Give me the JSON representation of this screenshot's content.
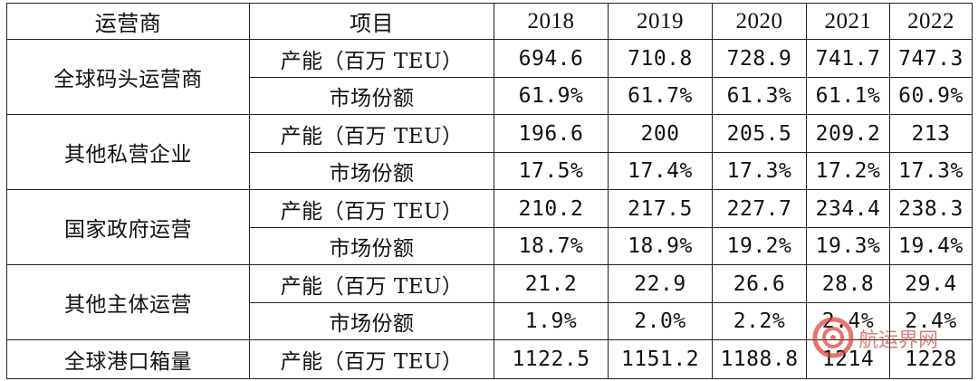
{
  "table": {
    "headers": {
      "operator": "运营商",
      "item": "项目",
      "years": [
        "2018",
        "2019",
        "2020",
        "2021",
        "2022"
      ]
    },
    "groups": [
      {
        "name": "全球码头运营商",
        "rows": [
          {
            "item": "产能（百万 TEU）",
            "values": [
              "694.6",
              "710.8",
              "728.9",
              "741.7",
              "747.3"
            ]
          },
          {
            "item": "市场份额",
            "values": [
              "61.9%",
              "61.7%",
              "61.3%",
              "61.1%",
              "60.9%"
            ]
          }
        ]
      },
      {
        "name": "其他私营企业",
        "rows": [
          {
            "item": "产能（百万 TEU）",
            "values": [
              "196.6",
              "200",
              "205.5",
              "209.2",
              "213"
            ]
          },
          {
            "item": "市场份额",
            "values": [
              "17.5%",
              "17.4%",
              "17.3%",
              "17.2%",
              "17.3%"
            ]
          }
        ]
      },
      {
        "name": "国家政府运营",
        "rows": [
          {
            "item": "产能（百万 TEU）",
            "values": [
              "210.2",
              "217.5",
              "227.7",
              "234.4",
              "238.3"
            ]
          },
          {
            "item": "市场份额",
            "values": [
              "18.7%",
              "18.9%",
              "19.2%",
              "19.3%",
              "19.4%"
            ]
          }
        ]
      },
      {
        "name": "其他主体运营",
        "rows": [
          {
            "item": "产能（百万 TEU）",
            "values": [
              "21.2",
              "22.9",
              "26.6",
              "28.8",
              "29.4"
            ]
          },
          {
            "item": "市场份额",
            "values": [
              "1.9%",
              "2.0%",
              "2.2%",
              "2.4%",
              "2.4%"
            ]
          }
        ]
      }
    ],
    "total": {
      "name": "全球港口箱量",
      "item": "产能（百万 TEU）",
      "values": [
        "1122.5",
        "1151.2",
        "1188.8",
        "1214",
        "1228"
      ]
    }
  },
  "watermark": {
    "text": "航运界网",
    "color_red": "#d9342b",
    "color_gray": "#8a8a8a"
  }
}
